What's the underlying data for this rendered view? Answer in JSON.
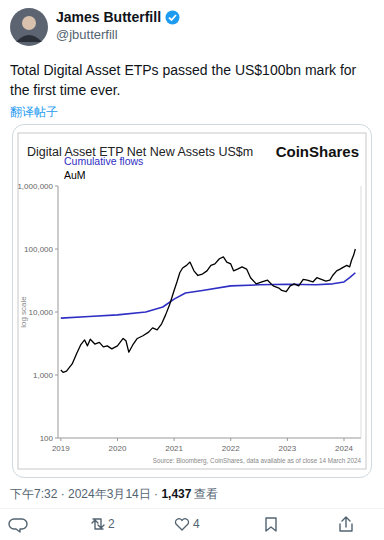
{
  "tweet": {
    "name": "James Butterfill",
    "handle": "@jbutterfill",
    "text": "Total Digital Asset ETPs passed the US$100bn mark for the first time ever.",
    "translate": "翻译帖子",
    "time": "下午7:32 · 2024年3月14日 · ",
    "views": "1,437",
    "views_label": "查看",
    "retweets": "2",
    "likes": "4"
  },
  "chart_data": {
    "type": "line",
    "title": "Digital Asset ETP Net New Assets US$m",
    "brand": "CoinShares",
    "y_label": "log scale",
    "source": "Source: Bloomberg, CoinShares, data available as of close 14 March 2024",
    "log": "y",
    "grid": false,
    "legend": "top-left",
    "xlim": [
      2018.95,
      2024.3
    ],
    "xticks": [
      2019,
      2020,
      2021,
      2022,
      2023,
      2024
    ],
    "ylim": [
      100,
      1000000
    ],
    "yticks": [
      100,
      {
        "value": 1000,
        "label": "1,000"
      },
      {
        "value": 10000,
        "label": "10,000"
      },
      {
        "value": 100000,
        "label": "100,000"
      },
      {
        "value": 1000000,
        "label": "1,000,000"
      }
    ],
    "series": [
      {
        "name": "Cumulative flows",
        "color": "#2f2fc4",
        "x": [
          2019.0,
          2019.5,
          2020.0,
          2020.5,
          2020.8,
          2021.0,
          2021.2,
          2021.5,
          2022.0,
          2022.5,
          2023.0,
          2023.5,
          2023.8,
          2024.0,
          2024.1,
          2024.2
        ],
        "values": [
          8000,
          8500,
          9000,
          10000,
          12000,
          16000,
          20000,
          22000,
          26000,
          27000,
          27500,
          27000,
          28000,
          30000,
          35000,
          42000
        ]
      },
      {
        "name": "AuM",
        "color": "#000000",
        "x": [
          2019.0,
          2019.04,
          2019.1,
          2019.2,
          2019.28,
          2019.35,
          2019.42,
          2019.47,
          2019.52,
          2019.6,
          2019.68,
          2019.75,
          2019.82,
          2019.9,
          2020.0,
          2020.1,
          2020.15,
          2020.2,
          2020.27,
          2020.35,
          2020.45,
          2020.55,
          2020.62,
          2020.7,
          2020.78,
          2020.85,
          2020.92,
          2021.0,
          2021.05,
          2021.1,
          2021.15,
          2021.22,
          2021.28,
          2021.35,
          2021.42,
          2021.5,
          2021.58,
          2021.65,
          2021.72,
          2021.8,
          2021.87,
          2021.93,
          2022.0,
          2022.05,
          2022.12,
          2022.2,
          2022.28,
          2022.35,
          2022.45,
          2022.55,
          2022.65,
          2022.75,
          2022.85,
          2022.9,
          2022.98,
          2023.05,
          2023.12,
          2023.2,
          2023.28,
          2023.35,
          2023.45,
          2023.52,
          2023.6,
          2023.68,
          2023.75,
          2023.8,
          2023.87,
          2023.93,
          2024.0,
          2024.05,
          2024.1,
          2024.13,
          2024.17,
          2024.2
        ],
        "values": [
          1200,
          1100,
          1150,
          1500,
          2200,
          3000,
          3600,
          2900,
          3700,
          3100,
          3300,
          2800,
          2900,
          2600,
          2900,
          3800,
          3500,
          2300,
          3000,
          3800,
          4200,
          4800,
          5600,
          5200,
          6500,
          9000,
          13000,
          22000,
          30000,
          42000,
          50000,
          55000,
          62000,
          45000,
          38000,
          40000,
          45000,
          55000,
          58000,
          70000,
          75000,
          62000,
          58000,
          45000,
          48000,
          52000,
          48000,
          35000,
          28000,
          30000,
          32000,
          26000,
          24000,
          22000,
          21000,
          26000,
          28000,
          26000,
          33000,
          32000,
          30000,
          35000,
          33000,
          31000,
          32000,
          38000,
          45000,
          48000,
          52000,
          55000,
          52000,
          65000,
          80000,
          100000
        ]
      }
    ]
  }
}
